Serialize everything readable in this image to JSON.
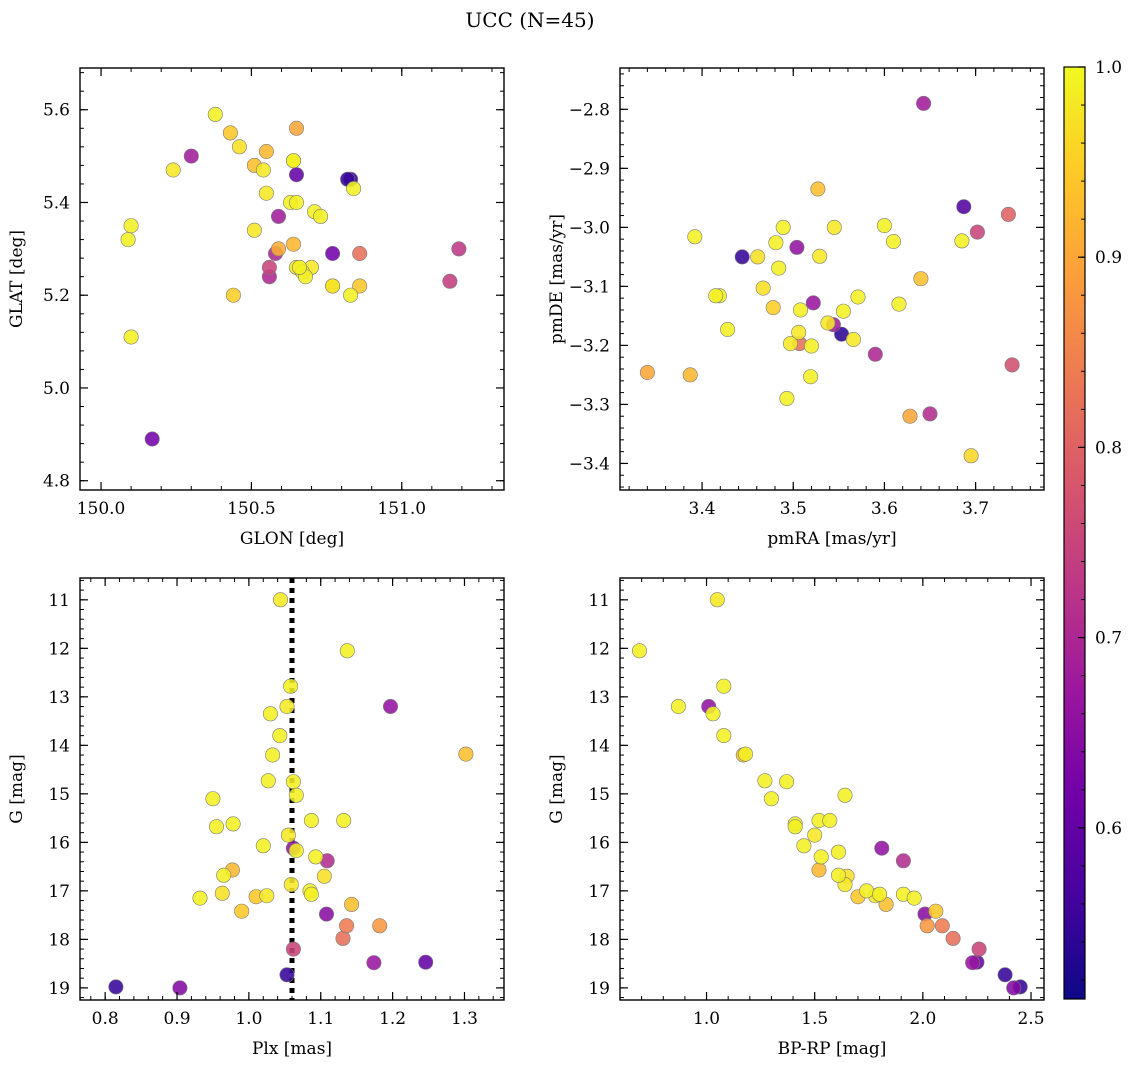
{
  "title": "UCC (N=45)",
  "colorbar": {
    "min": 0.51,
    "max": 1.0,
    "ticks": [
      0.6,
      0.7,
      0.8,
      0.9,
      1.0
    ],
    "tick_labels": [
      "0.6",
      "0.7",
      "0.8",
      "0.9",
      "1.0"
    ],
    "colormap": "plasma",
    "colormap_stops": [
      "#0d0887",
      "#46039f",
      "#7201a8",
      "#9c179e",
      "#bd3786",
      "#d8576b",
      "#ed7953",
      "#fb9f3a",
      "#fdca26",
      "#f0f921"
    ]
  },
  "chart_data": [
    {
      "type": "scatter",
      "xlabel": "GLON [deg]",
      "ylabel": "GLAT [deg]",
      "xlim": [
        149.93,
        151.34
      ],
      "ylim": [
        4.78,
        5.69
      ],
      "y_inverted": false,
      "xticks": [
        150.0,
        150.5,
        151.0
      ],
      "xtick_labels": [
        "150.0",
        "150.5",
        "151.0"
      ],
      "yticks": [
        4.8,
        5.0,
        5.2,
        5.4,
        5.6
      ],
      "ytick_labels": [
        "4.8",
        "5.0",
        "5.2",
        "5.4",
        "5.6"
      ],
      "x": [
        150.38,
        150.43,
        150.65,
        150.46,
        150.55,
        150.3,
        150.24,
        150.64,
        150.65,
        150.51,
        150.54,
        150.83,
        150.84,
        150.55,
        150.63,
        150.65,
        150.1,
        150.09,
        150.71,
        150.73,
        150.59,
        150.51,
        150.64,
        150.59,
        150.77,
        150.86,
        151.19,
        150.56,
        150.65,
        150.67,
        150.7,
        150.56,
        150.68,
        150.77,
        150.83,
        150.86,
        151.16,
        150.44,
        150.1,
        150.17,
        150.64,
        150.77,
        150.58,
        150.82,
        150.66
      ],
      "y": [
        5.59,
        5.55,
        5.56,
        5.52,
        5.51,
        5.5,
        5.47,
        5.49,
        5.46,
        5.48,
        5.47,
        5.45,
        5.43,
        5.42,
        5.4,
        5.4,
        5.35,
        5.32,
        5.38,
        5.37,
        5.37,
        5.34,
        5.31,
        5.3,
        5.29,
        5.29,
        5.3,
        5.26,
        5.26,
        5.25,
        5.26,
        5.24,
        5.24,
        5.22,
        5.2,
        5.22,
        5.23,
        5.2,
        5.11,
        4.89,
        5.49,
        5.22,
        5.29,
        5.45,
        5.26
      ],
      "color_value": [
        0.99,
        0.94,
        0.9,
        0.97,
        0.92,
        0.68,
        0.98,
        0.99,
        0.6,
        0.93,
        0.98,
        0.55,
        0.99,
        0.98,
        0.99,
        0.99,
        0.99,
        0.99,
        0.99,
        0.99,
        0.68,
        0.98,
        0.92,
        0.91,
        0.62,
        0.82,
        0.73,
        0.75,
        0.98,
        0.99,
        0.98,
        0.7,
        0.99,
        0.98,
        0.99,
        0.94,
        0.74,
        0.95,
        0.99,
        0.62,
        0.99,
        0.92,
        0.7,
        0.55,
        0.99
      ]
    },
    {
      "type": "scatter",
      "xlabel": "pmRA [mas/yr]",
      "ylabel": "pmDE [mas/yr]",
      "xlim": [
        3.31,
        3.775
      ],
      "ylim": [
        -3.445,
        -2.73
      ],
      "y_inverted": false,
      "xticks": [
        3.4,
        3.5,
        3.6,
        3.7
      ],
      "xtick_labels": [
        "3.4",
        "3.5",
        "3.6",
        "3.7"
      ],
      "yticks": [
        -3.4,
        -3.3,
        -3.2,
        -3.1,
        -3.0,
        -2.9,
        -2.8
      ],
      "ytick_labels": [
        "−3.4",
        "−3.3",
        "−3.2",
        "−3.1",
        "−3.0",
        "−2.9",
        "−2.8"
      ],
      "x": [
        3.643,
        3.527,
        3.687,
        3.736,
        3.702,
        3.392,
        3.489,
        3.545,
        3.6,
        3.61,
        3.685,
        3.444,
        3.461,
        3.481,
        3.504,
        3.529,
        3.484,
        3.64,
        3.419,
        3.415,
        3.467,
        3.478,
        3.508,
        3.616,
        3.522,
        3.555,
        3.571,
        3.428,
        3.538,
        3.544,
        3.506,
        3.553,
        3.497,
        3.507,
        3.52,
        3.566,
        3.59,
        3.74,
        3.34,
        3.387,
        3.519,
        3.493,
        3.628,
        3.65,
        3.695
      ],
      "y": [
        -2.79,
        -2.935,
        -2.965,
        -2.978,
        -3.008,
        -3.016,
        -3.0,
        -3.0,
        -2.997,
        -3.024,
        -3.023,
        -3.05,
        -3.05,
        -3.026,
        -3.034,
        -3.049,
        -3.069,
        -3.087,
        -3.116,
        -3.116,
        -3.103,
        -3.136,
        -3.14,
        -3.13,
        -3.128,
        -3.142,
        -3.118,
        -3.173,
        -3.162,
        -3.165,
        -3.178,
        -3.181,
        -3.197,
        -3.197,
        -3.201,
        -3.19,
        -3.215,
        -3.233,
        -3.246,
        -3.25,
        -3.253,
        -3.29,
        -3.32,
        -3.316,
        -3.387
      ],
      "color_value": [
        0.68,
        0.93,
        0.58,
        0.8,
        0.75,
        0.99,
        0.99,
        0.98,
        0.99,
        0.99,
        0.99,
        0.55,
        0.97,
        0.99,
        0.66,
        0.98,
        0.99,
        0.93,
        0.99,
        0.99,
        0.97,
        0.95,
        0.99,
        0.99,
        0.67,
        0.99,
        0.99,
        0.99,
        0.98,
        0.68,
        0.98,
        0.54,
        0.98,
        0.82,
        0.99,
        0.98,
        0.7,
        0.77,
        0.9,
        0.92,
        0.99,
        0.99,
        0.9,
        0.71,
        0.96
      ]
    },
    {
      "type": "scatter",
      "xlabel": "Plx [mas]",
      "ylabel": "G [mag]",
      "xlim": [
        0.765,
        1.355
      ],
      "ylim": [
        19.25,
        10.55
      ],
      "y_inverted": true,
      "vline": {
        "x": 1.06,
        "style": "dotted",
        "color": "#000000"
      },
      "xticks": [
        0.8,
        0.9,
        1.0,
        1.1,
        1.2,
        1.3
      ],
      "xtick_labels": [
        "0.8",
        "0.9",
        "1.0",
        "1.1",
        "1.2",
        "1.3"
      ],
      "yticks": [
        11,
        12,
        13,
        14,
        15,
        16,
        17,
        18,
        19
      ],
      "ytick_labels": [
        "11",
        "12",
        "13",
        "14",
        "15",
        "16",
        "17",
        "18",
        "19"
      ],
      "x": [
        1.044,
        1.137,
        1.197,
        1.058,
        1.03,
        1.053,
        1.043,
        1.033,
        1.302,
        1.027,
        1.062,
        1.066,
        0.95,
        1.087,
        1.132,
        0.955,
        0.978,
        1.055,
        1.02,
        1.062,
        1.066,
        1.093,
        1.109,
        0.977,
        1.105,
        0.965,
        1.059,
        0.963,
        1.085,
        1.01,
        1.025,
        1.087,
        0.932,
        1.143,
        0.99,
        1.108,
        1.136,
        1.182,
        1.131,
        1.062,
        1.174,
        1.246,
        1.053,
        0.815,
        0.904
      ],
      "y": [
        11.0,
        12.05,
        13.2,
        12.78,
        13.35,
        13.2,
        13.8,
        14.2,
        14.18,
        14.73,
        14.75,
        15.03,
        15.1,
        15.55,
        15.55,
        15.68,
        15.62,
        15.85,
        16.07,
        16.12,
        16.17,
        16.3,
        16.38,
        16.57,
        16.7,
        16.68,
        16.87,
        17.05,
        17.0,
        17.12,
        17.1,
        17.07,
        17.15,
        17.28,
        17.42,
        17.48,
        17.72,
        17.72,
        17.98,
        18.2,
        18.48,
        18.47,
        18.73,
        18.98,
        19.0
      ],
      "color_value": [
        0.98,
        0.99,
        0.66,
        0.99,
        0.99,
        0.98,
        0.99,
        0.99,
        0.93,
        0.99,
        0.99,
        0.99,
        0.99,
        0.99,
        0.99,
        0.99,
        0.99,
        0.98,
        0.99,
        0.66,
        0.99,
        0.99,
        0.71,
        0.92,
        0.97,
        0.99,
        0.98,
        0.97,
        0.99,
        0.94,
        0.98,
        0.99,
        0.99,
        0.93,
        0.94,
        0.65,
        0.84,
        0.88,
        0.82,
        0.75,
        0.67,
        0.6,
        0.55,
        0.55,
        0.64
      ]
    },
    {
      "type": "scatter",
      "xlabel": "BP-RP [mag]",
      "ylabel": "G [mag]",
      "xlim": [
        0.6,
        2.56
      ],
      "ylim": [
        19.25,
        10.55
      ],
      "y_inverted": true,
      "xticks": [
        1.0,
        1.5,
        2.0,
        2.5
      ],
      "xtick_labels": [
        "1.0",
        "1.5",
        "2.0",
        "2.5"
      ],
      "yticks": [
        11,
        12,
        13,
        14,
        15,
        16,
        17,
        18,
        19
      ],
      "ytick_labels": [
        "11",
        "12",
        "13",
        "14",
        "15",
        "16",
        "17",
        "18",
        "19"
      ],
      "x": [
        1.05,
        0.69,
        1.01,
        1.08,
        0.87,
        1.03,
        1.08,
        1.17,
        1.18,
        1.27,
        1.37,
        1.64,
        1.3,
        1.52,
        1.57,
        1.41,
        1.41,
        1.5,
        1.45,
        1.61,
        1.81,
        1.53,
        1.91,
        1.52,
        1.65,
        1.61,
        1.64,
        1.74,
        1.91,
        1.7,
        1.78,
        1.8,
        1.96,
        2.06,
        1.83,
        2.01,
        2.02,
        2.09,
        2.14,
        2.26,
        2.23,
        2.25,
        2.38,
        2.45,
        2.42
      ],
      "y": [
        11.0,
        12.05,
        13.2,
        12.78,
        13.2,
        13.35,
        13.8,
        14.2,
        14.18,
        14.73,
        14.75,
        15.03,
        15.1,
        15.55,
        15.55,
        15.62,
        15.68,
        15.85,
        16.07,
        16.2,
        16.12,
        16.3,
        16.38,
        16.57,
        16.7,
        16.68,
        16.87,
        17.0,
        17.07,
        17.12,
        17.1,
        17.07,
        17.15,
        17.42,
        17.28,
        17.48,
        17.72,
        17.72,
        17.98,
        18.2,
        18.48,
        18.47,
        18.73,
        18.98,
        19.0
      ],
      "color_value": [
        0.98,
        0.99,
        0.66,
        0.99,
        0.99,
        0.99,
        0.99,
        0.93,
        0.99,
        0.99,
        0.99,
        0.99,
        0.99,
        0.99,
        0.99,
        0.99,
        0.99,
        0.98,
        0.99,
        0.99,
        0.66,
        0.99,
        0.71,
        0.92,
        0.97,
        0.99,
        0.98,
        0.99,
        0.99,
        0.94,
        0.98,
        0.99,
        0.99,
        0.94,
        0.93,
        0.65,
        0.88,
        0.84,
        0.82,
        0.75,
        0.67,
        0.6,
        0.55,
        0.55,
        0.64
      ]
    }
  ]
}
